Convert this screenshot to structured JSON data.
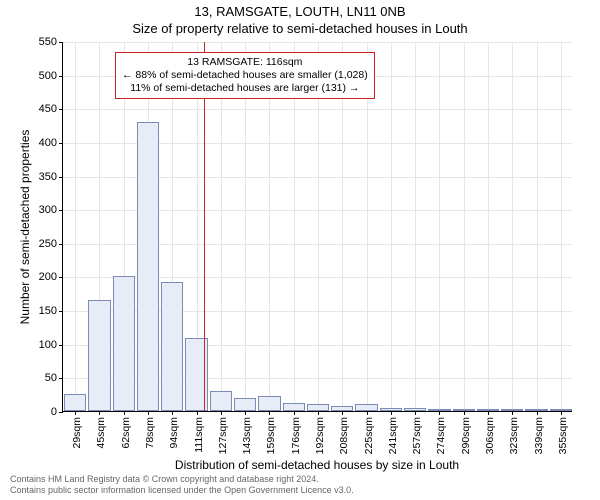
{
  "title": {
    "line1": "13, RAMSGATE, LOUTH, LN11 0NB",
    "line2": "Size of property relative to semi-detached houses in Louth"
  },
  "chart": {
    "type": "histogram",
    "bar_fill": "#e8ecf7",
    "bar_stroke": "#7a8bb5",
    "grid_color": "#e5e5e5",
    "background": "#ffffff",
    "refline_color": "#cc2222",
    "ylabel": "Number of semi-detached properties",
    "xlabel": "Distribution of semi-detached houses by size in Louth",
    "ylim": [
      0,
      550
    ],
    "yticks": [
      0,
      50,
      100,
      150,
      200,
      250,
      300,
      350,
      400,
      450,
      500,
      550
    ],
    "xticks": [
      "29sqm",
      "45sqm",
      "62sqm",
      "78sqm",
      "94sqm",
      "111sqm",
      "127sqm",
      "143sqm",
      "159sqm",
      "176sqm",
      "192sqm",
      "208sqm",
      "225sqm",
      "241sqm",
      "257sqm",
      "274sqm",
      "290sqm",
      "306sqm",
      "323sqm",
      "339sqm",
      "355sqm"
    ],
    "bars": [
      25,
      165,
      200,
      430,
      192,
      108,
      30,
      20,
      22,
      12,
      10,
      8,
      10,
      4,
      4,
      3,
      2,
      2,
      2,
      1,
      2
    ],
    "reference_index": 5.3,
    "reference_value": 116
  },
  "annotation": {
    "line1": "13 RAMSGATE: 116sqm",
    "line2": "← 88% of semi-detached houses are smaller (1,028)",
    "line3": "11% of semi-detached houses are larger (131) →"
  },
  "footer": {
    "line1": "Contains HM Land Registry data © Crown copyright and database right 2024.",
    "line2": "Contains public sector information licensed under the Open Government Licence v3.0."
  }
}
